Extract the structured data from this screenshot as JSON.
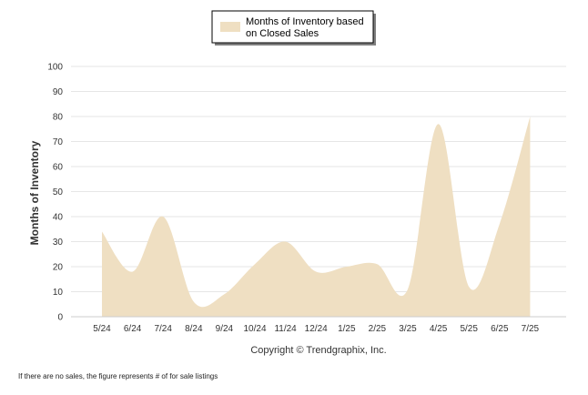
{
  "chart_data": {
    "type": "area",
    "categories": [
      "5/24",
      "6/24",
      "7/24",
      "8/24",
      "9/24",
      "10/24",
      "11/24",
      "12/24",
      "1/25",
      "2/25",
      "3/25",
      "4/25",
      "5/25",
      "6/25",
      "7/25"
    ],
    "series": [
      {
        "name": "Months of Inventory based on Closed Sales",
        "values": [
          34,
          18,
          40,
          6,
          9,
          21,
          30,
          18,
          20,
          21,
          11,
          77,
          12,
          37,
          80
        ],
        "color": "#efdfc2"
      }
    ],
    "ylabel": "Months of Inventory",
    "ylim": [
      0,
      100
    ],
    "yticks": [
      0,
      10,
      20,
      30,
      40,
      50,
      60,
      70,
      80,
      90,
      100
    ],
    "grid": true,
    "legend_position": "top-center",
    "legend_lines": [
      "Months of Inventory based",
      "on Closed Sales"
    ]
  },
  "copyright": "Copyright © Trendgraphix, Inc.",
  "footnote": "If there are no sales, the figure represents # of for sale listings"
}
